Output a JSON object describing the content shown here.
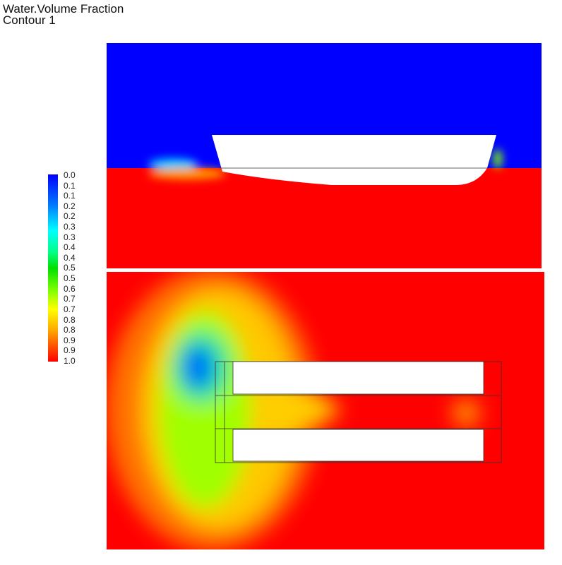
{
  "title": "Water.Volume Fraction",
  "subtitle": "Contour 1",
  "legend": {
    "labels": [
      "0.0",
      "0.1",
      "0.1",
      "0.2",
      "0.2",
      "0.3",
      "0.3",
      "0.4",
      "0.4",
      "0.5",
      "0.5",
      "0.6",
      "0.7",
      "0.7",
      "0.8",
      "0.8",
      "0.9",
      "0.9",
      "1.0"
    ],
    "min": 0.0,
    "max": 1.0,
    "colors": [
      "#0000ff",
      "#00ffff",
      "#00e000",
      "#ffff00",
      "#ff0000"
    ]
  },
  "views": [
    {
      "name": "side-view",
      "air_color": "#0000ff",
      "water_color": "#ff0000"
    },
    {
      "name": "bottom-view",
      "water_color": "#ff0000"
    }
  ]
}
